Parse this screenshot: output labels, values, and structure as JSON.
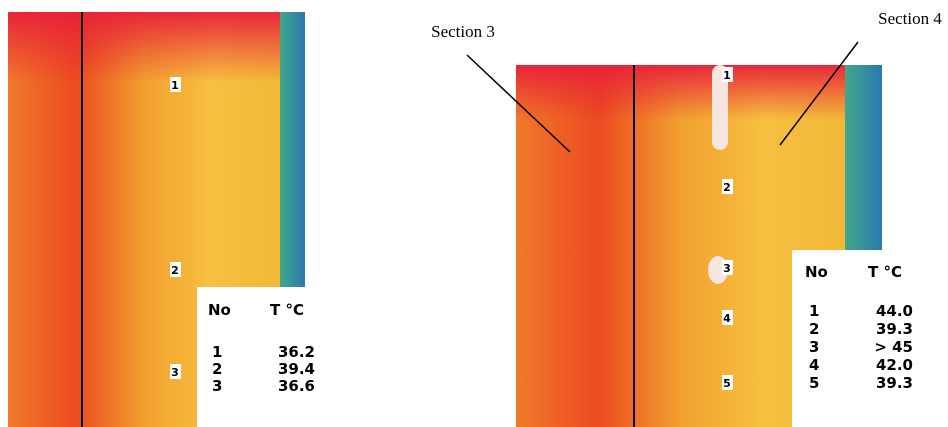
{
  "left": {
    "points": [
      "1",
      "2",
      "3"
    ],
    "table": {
      "header": [
        "No",
        "T °C"
      ],
      "rows": [
        [
          "1",
          "36.2"
        ],
        [
          "2",
          "39.4"
        ],
        [
          "3",
          "36.6"
        ]
      ]
    }
  },
  "right": {
    "labels": [
      "Section 3",
      "Section 4"
    ],
    "points": [
      "1",
      "2",
      "3",
      "4",
      "5"
    ],
    "table": {
      "header": [
        "No",
        "T °C"
      ],
      "rows": [
        [
          "1",
          "44.0"
        ],
        [
          "2",
          "39.3"
        ],
        [
          "3",
          "> 45"
        ],
        [
          "4",
          "42.0"
        ],
        [
          "5",
          "39.3"
        ]
      ]
    }
  }
}
